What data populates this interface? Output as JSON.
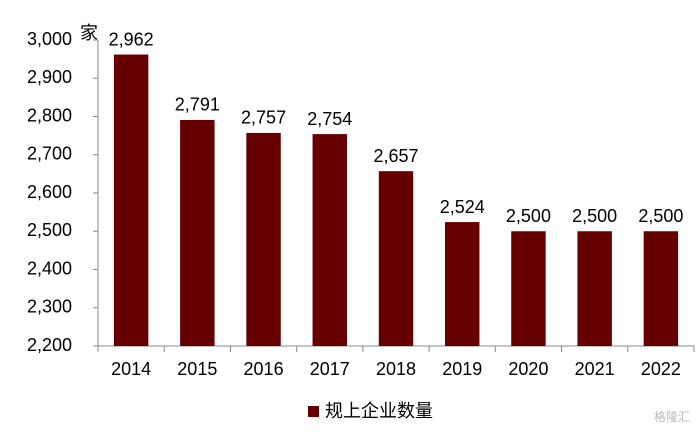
{
  "chart_data": {
    "type": "bar",
    "y_unit": "家",
    "categories": [
      "2014",
      "2015",
      "2016",
      "2017",
      "2018",
      "2019",
      "2020",
      "2021",
      "2022"
    ],
    "series": [
      {
        "name": "规上企业数量",
        "color": "#660000",
        "values": [
          2962,
          2791,
          2757,
          2754,
          2657,
          2524,
          2500,
          2500,
          2500
        ],
        "value_labels": [
          "2,962",
          "2,791",
          "2,757",
          "2,754",
          "2,657",
          "2,524",
          "2,500",
          "2,500",
          "2,500"
        ]
      }
    ],
    "ylim": [
      2200,
      3000
    ],
    "yticks": [
      {
        "value": 2200,
        "label": "2,200"
      },
      {
        "value": 2300,
        "label": "2,300"
      },
      {
        "value": 2400,
        "label": "2,400"
      },
      {
        "value": 2500,
        "label": "2,500"
      },
      {
        "value": 2600,
        "label": "2,600"
      },
      {
        "value": 2700,
        "label": "2,700"
      },
      {
        "value": 2800,
        "label": "2,800"
      },
      {
        "value": 2900,
        "label": "2,900"
      },
      {
        "value": 3000,
        "label": "3,000"
      }
    ],
    "grid": false,
    "legend": "bottom",
    "watermark": "格隆汇"
  }
}
